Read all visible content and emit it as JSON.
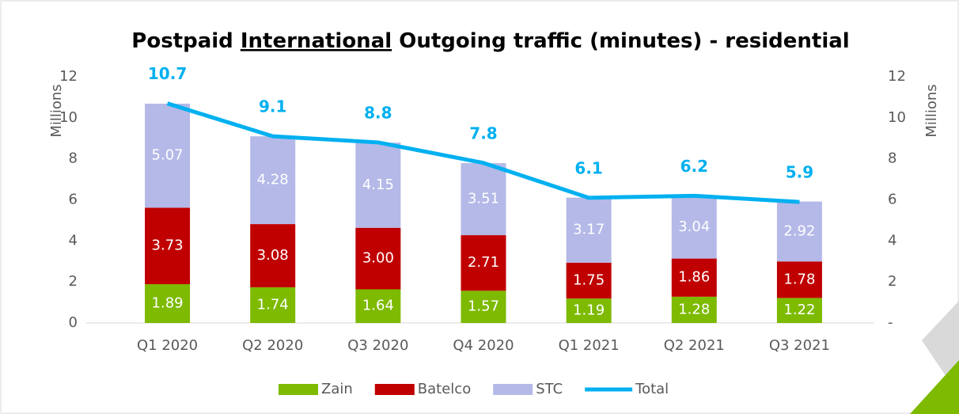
{
  "chart_data": {
    "type": "bar",
    "title": [
      "Postpaid",
      "International",
      "Outgoing traffic (minutes) - residential"
    ],
    "ylabel": "Millions",
    "y2label": "Millions",
    "categories": [
      "Q1 2020",
      "Q2 2020",
      "Q3 2020",
      "Q4 2020",
      "Q1 2021",
      "Q2 2021",
      "Q3 2021"
    ],
    "stacked": true,
    "series": [
      {
        "name": "Zain",
        "color": "#7dba00",
        "values": [
          1.89,
          1.74,
          1.64,
          1.57,
          1.19,
          1.28,
          1.22
        ]
      },
      {
        "name": "Batelco",
        "color": "#c00000",
        "values": [
          3.73,
          3.08,
          3,
          2.71,
          1.75,
          1.86,
          1.78
        ],
        "value_labels": [
          "3.73",
          "3.08",
          "3.00",
          "2.71",
          "1.75",
          "1.86",
          "1.78"
        ]
      },
      {
        "name": "STC",
        "color": "#b4b9e8",
        "values": [
          5.07,
          4.28,
          4.15,
          3.51,
          3.17,
          3.04,
          2.92
        ]
      },
      {
        "name": "Total",
        "color": "#00b0f0",
        "type": "line",
        "axis": "y2",
        "values": [
          10.7,
          9.1,
          8.8,
          7.8,
          6.1,
          6.2,
          5.9
        ]
      }
    ],
    "ylim": [
      0,
      12
    ],
    "yticks": [
      0,
      2,
      4,
      6,
      8,
      10,
      12
    ],
    "y2lim": [
      0,
      12
    ],
    "y2ticks": [
      {
        "value": 0,
        "label": "-"
      },
      2,
      4,
      6,
      8,
      10,
      12
    ],
    "grid": false,
    "legend": "bottom"
  }
}
